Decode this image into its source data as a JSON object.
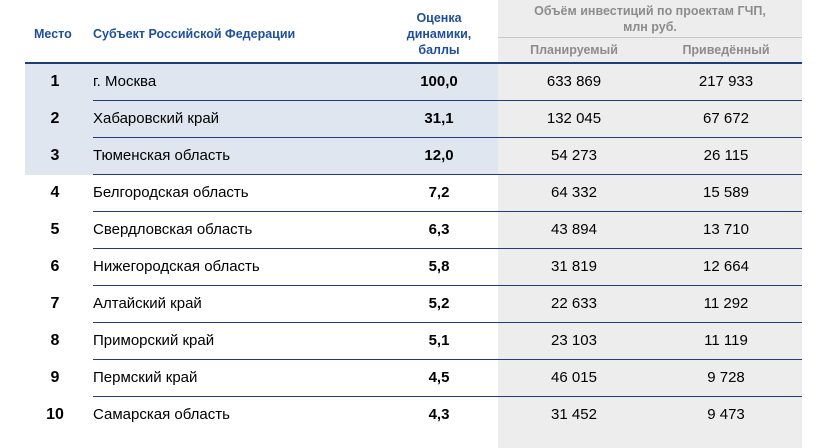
{
  "header": {
    "place": "Место",
    "subject": "Субъект Российской Федерации",
    "score_line1": "Оценка",
    "score_line2": "динамики,",
    "score_line3": "баллы",
    "investment_line1": "Объём инвестиций по проектам ГЧП,",
    "investment_line2": "млн руб.",
    "planned": "Планируемый",
    "actual": "Приведённый"
  },
  "colors": {
    "header_text": "#1f4e9c",
    "rule": "#1f3d7a",
    "highlight": "#dfe6f0",
    "investment_bg": "#ededee"
  },
  "rows": [
    {
      "place": "1",
      "subject": "г. Москва",
      "score": "100,0",
      "planned": "633 869",
      "actual": "217 933"
    },
    {
      "place": "2",
      "subject": "Хабаровский край",
      "score": "31,1",
      "planned": "132 045",
      "actual": "67 672"
    },
    {
      "place": "3",
      "subject": "Тюменская область",
      "score": "12,0",
      "planned": "54 273",
      "actual": "26 115"
    },
    {
      "place": "4",
      "subject": "Белгородская область",
      "score": "7,2",
      "planned": "64 332",
      "actual": "15 589"
    },
    {
      "place": "5",
      "subject": "Свердловская область",
      "score": "6,3",
      "planned": "43 894",
      "actual": "13 710"
    },
    {
      "place": "6",
      "subject": "Нижегородская область",
      "score": "5,8",
      "planned": "31 819",
      "actual": "12 664"
    },
    {
      "place": "7",
      "subject": "Алтайский край",
      "score": "5,2",
      "planned": "22 633",
      "actual": "11 292"
    },
    {
      "place": "8",
      "subject": "Приморский край",
      "score": "5,1",
      "planned": "23 103",
      "actual": "11 119"
    },
    {
      "place": "9",
      "subject": "Пермский край",
      "score": "4,5",
      "planned": "46 015",
      "actual": "9 728"
    },
    {
      "place": "10",
      "subject": "Самарская область",
      "score": "4,3",
      "planned": "31 452",
      "actual": "9 473"
    }
  ]
}
